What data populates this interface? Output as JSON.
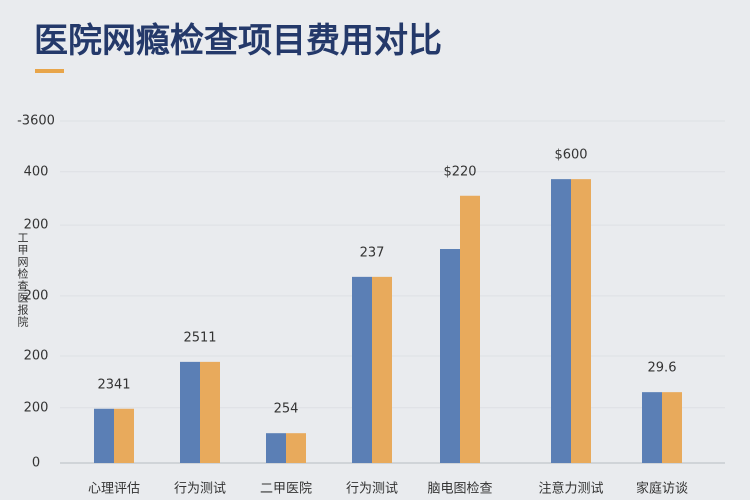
{
  "chart_data": {
    "type": "bar",
    "title": "医院网瘾检查项目费用对比",
    "y_label": "工甲网检查医报院",
    "categories": [
      "心理评估",
      "行为测试",
      "二甲医院",
      "行为测试",
      "脑电图检查",
      "注意力测试",
      "家庭访谈"
    ],
    "annotations": [
      "2341",
      "2511",
      "254",
      "237",
      "$220",
      "$600",
      "29.6"
    ],
    "series": [
      {
        "color": "#5b7fb5",
        "values": [
          111,
          207,
          61,
          381,
          438,
          581,
          145
        ]
      },
      {
        "color": "#e8aa5c",
        "values": [
          111,
          207,
          61,
          381,
          547,
          581,
          145
        ]
      }
    ],
    "ylim": [
      0,
      700
    ],
    "yticks": [
      0,
      {
        "value": 113,
        "label": "200"
      },
      {
        "value": 219,
        "label": "200"
      },
      {
        "value": 342,
        "label": "200"
      },
      {
        "value": 487,
        "label": "200"
      },
      {
        "value": 596,
        "label": "400"
      },
      {
        "value": 700,
        "label": "-3600"
      }
    ],
    "grid": true
  }
}
